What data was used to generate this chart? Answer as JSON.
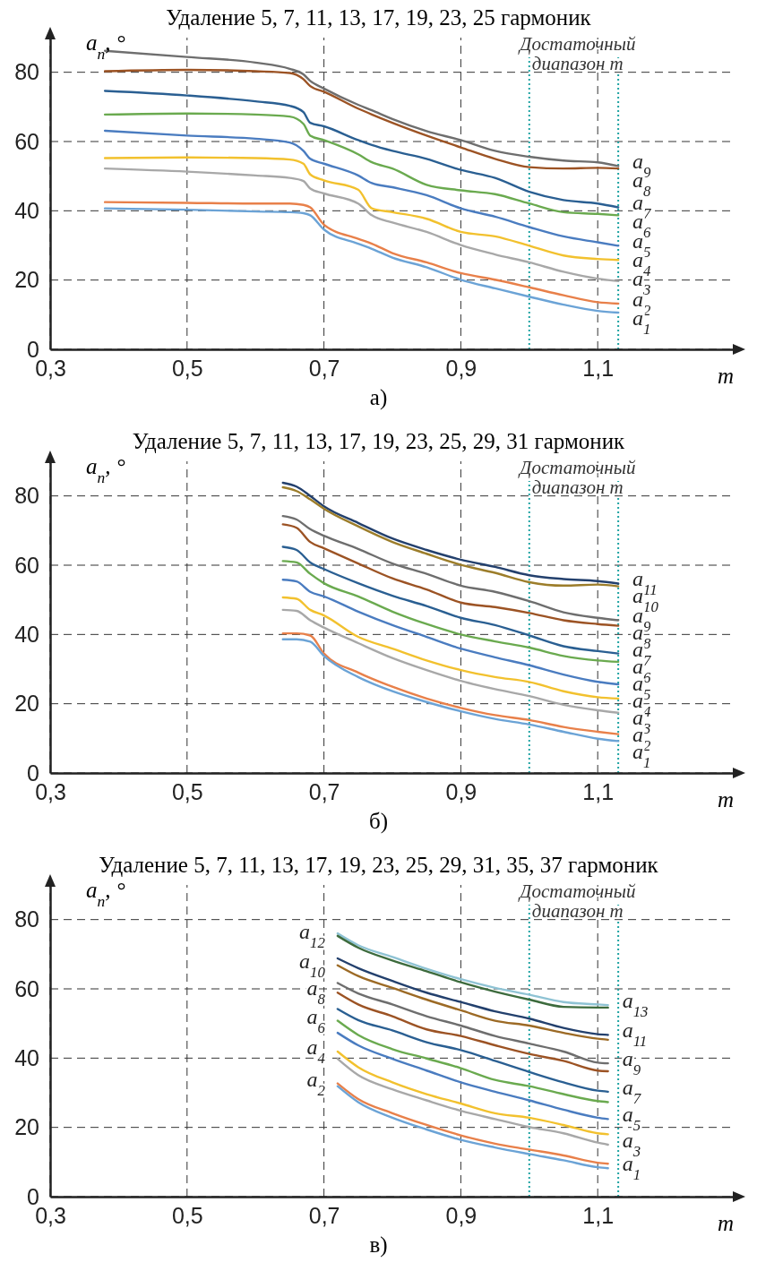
{
  "chart_data": [
    {
      "type": "line",
      "title": "Удаление 5, 7, 11, 13, 17, 19, 23, 25 гармоник",
      "xlabel": "m",
      "ylabel": "a$_{n}$, °",
      "annotations": [
        "а)"
      ],
      "x": [
        0.38,
        0.5,
        0.6,
        0.65,
        0.67,
        0.68,
        0.7,
        0.75,
        0.77,
        0.8,
        0.85,
        0.9,
        0.95,
        1.0,
        1.05,
        1.1,
        1.13
      ],
      "series": [
        {
          "name": "a$_{9}$",
          "color": "#6e6e6e",
          "values": [
            86.2,
            84.4,
            82.8,
            81,
            79.4,
            77.5,
            75.3,
            70.6,
            69,
            66.5,
            63,
            60.4,
            57.3,
            55.6,
            54.5,
            54,
            52.9
          ]
        },
        {
          "name": "a$_{8}$",
          "color": "#9c5324",
          "values": [
            80.3,
            80.7,
            80.3,
            79.8,
            78,
            76,
            74.4,
            69.5,
            67.8,
            65.4,
            61.7,
            58.3,
            55,
            52.6,
            52.2,
            52.4,
            52.2
          ]
        },
        {
          "name": "a$_{7}$",
          "color": "#2a5f92",
          "values": [
            74.6,
            73.3,
            71.6,
            70.3,
            68.5,
            65.4,
            64.4,
            60.4,
            59,
            57.3,
            55,
            51.8,
            49.5,
            45.5,
            43.1,
            42.1,
            41
          ]
        },
        {
          "name": "a$_{6}$",
          "color": "#6aaa4f",
          "values": [
            67.8,
            68.1,
            67.8,
            67.2,
            65.1,
            61.7,
            60.4,
            56.3,
            54,
            52.2,
            47.5,
            45.9,
            44.8,
            42.1,
            39.6,
            39.1,
            38.7
          ]
        },
        {
          "name": "a$_{5}$",
          "color": "#4a7cc0",
          "values": [
            63.1,
            61.7,
            60.8,
            59.7,
            57.3,
            55,
            53.6,
            50.2,
            48,
            46.8,
            44.5,
            40.7,
            38.3,
            35.3,
            32.6,
            30.9,
            29.9
          ]
        },
        {
          "name": "a$_{4}$",
          "color": "#f2c12e",
          "values": [
            55.2,
            55.4,
            55.2,
            54.8,
            53.6,
            50.5,
            48.8,
            46.1,
            40.7,
            39.6,
            37.7,
            33.9,
            32.6,
            29.9,
            27.1,
            26.1,
            25.8
          ]
        },
        {
          "name": "a$_{3}$",
          "color": "#a8a8a8",
          "values": [
            52.2,
            51.3,
            50.2,
            49.5,
            48.6,
            46.4,
            45,
            42.1,
            38.7,
            36.6,
            33.9,
            30.1,
            27.4,
            25.1,
            22.4,
            20.4,
            19.7
          ]
        },
        {
          "name": "a$_{2}$",
          "color": "#e8804a",
          "values": [
            42.5,
            42.3,
            42.1,
            42.1,
            41.7,
            41,
            36,
            31.9,
            30.5,
            27.8,
            25.1,
            22,
            20.1,
            17.9,
            15.6,
            13.6,
            13.2
          ]
        },
        {
          "name": "a$_{1}$",
          "color": "#6ba3d6",
          "values": [
            40.7,
            40.3,
            39.8,
            39.6,
            39.3,
            38.7,
            34.6,
            30.5,
            29,
            26.5,
            23.7,
            20.1,
            17.6,
            15.2,
            12.9,
            11.1,
            10.6
          ]
        }
      ],
      "xlim": [
        0.3,
        1.3
      ],
      "ylim": [
        0,
        90
      ],
      "xticks": [
        {
          "value": 0.3,
          "label": "0,3"
        },
        {
          "value": 0.5,
          "label": "0,5"
        },
        {
          "value": 0.7,
          "label": "0,7"
        },
        {
          "value": 0.9,
          "label": "0,9"
        },
        {
          "value": 1.1,
          "label": "1,1"
        }
      ],
      "yticks": [
        0,
        20,
        40,
        60,
        80
      ],
      "grid": true,
      "ref_lines": [
        {
          "axis": "x",
          "value": 1.0,
          "label": "Достаточный диапазон m",
          "color": "#1fa3a3",
          "line_style": "dotted"
        },
        {
          "axis": "x",
          "value": 1.13,
          "label": null,
          "color": "#1fa3a3",
          "line_style": "dotted"
        }
      ]
    },
    {
      "type": "line",
      "title": "Удаление 5, 7, 11, 13, 17, 19, 23, 25, 29, 31 гармоник",
      "xlabel": "m",
      "ylabel": "a$_{n}$, °",
      "annotations": [
        "б)"
      ],
      "x": [
        0.64,
        0.66,
        0.68,
        0.7,
        0.75,
        0.8,
        0.85,
        0.9,
        0.95,
        1.0,
        1.05,
        1.1,
        1.13
      ],
      "series": [
        {
          "name": "a$_{11}$",
          "color": "#23406d",
          "values": [
            83.8,
            82.7,
            80,
            77,
            72.2,
            67.7,
            64.4,
            61.6,
            59.5,
            57.1,
            56,
            55.4,
            54.7
          ]
        },
        {
          "name": "a$_{10}$",
          "color": "#9c7d2a",
          "values": [
            82.5,
            81.4,
            79,
            76.3,
            71.2,
            66.7,
            63.3,
            60.1,
            57.8,
            55.1,
            54.1,
            54.4,
            53.9
          ]
        },
        {
          "name": "a$_{9}$",
          "color": "#6e6e6e",
          "values": [
            74.2,
            73.2,
            70.4,
            68.5,
            64.7,
            60.5,
            57.5,
            54.1,
            52.3,
            49.6,
            46.4,
            44.8,
            44.1
          ]
        },
        {
          "name": "a$_{8}$",
          "color": "#9c5324",
          "values": [
            71.8,
            70.8,
            66.7,
            64.9,
            60.5,
            56.2,
            53,
            49.2,
            47.9,
            46.2,
            44.1,
            43,
            42.5
          ]
        },
        {
          "name": "a$_{7}$",
          "color": "#2a5f92",
          "values": [
            65.3,
            64.4,
            60.8,
            58.9,
            54.8,
            51.2,
            48.2,
            44.8,
            42.7,
            39.7,
            36.6,
            35.2,
            34.5
          ]
        },
        {
          "name": "a$_{6}$",
          "color": "#6aaa4f",
          "values": [
            61.2,
            60.8,
            57.5,
            54.8,
            51,
            46.6,
            43,
            40,
            38,
            36.2,
            33.8,
            32.5,
            32.1
          ]
        },
        {
          "name": "a$_{5}$",
          "color": "#4a7cc0",
          "values": [
            55.8,
            55.3,
            52.3,
            51,
            46.6,
            42.7,
            39.3,
            35.9,
            33.4,
            31.1,
            28.4,
            26.3,
            25.6
          ]
        },
        {
          "name": "a$_{4}$",
          "color": "#f2c12e",
          "values": [
            50.7,
            50.3,
            47.1,
            45.5,
            39.3,
            35.9,
            32.5,
            29.7,
            27.7,
            26.3,
            23.6,
            21.9,
            21.5
          ]
        },
        {
          "name": "a$_{3}$",
          "color": "#a8a8a8",
          "values": [
            47.1,
            46.8,
            44.1,
            42,
            37.5,
            33.2,
            29.7,
            26.6,
            24.2,
            22.2,
            19.7,
            18.1,
            17.4
          ]
        },
        {
          "name": "a$_{2}$",
          "color": "#e8804a",
          "values": [
            40.3,
            40.3,
            39.7,
            34.5,
            29,
            24.9,
            21.5,
            18.8,
            16.7,
            15.3,
            13.3,
            11.9,
            11.2
          ]
        },
        {
          "name": "a$_{1}$",
          "color": "#6ba3d6",
          "values": [
            38.6,
            38.6,
            37.9,
            33.8,
            27.7,
            23.6,
            20.5,
            17.8,
            15.6,
            14,
            11.9,
            9.9,
            9.2
          ]
        }
      ],
      "xlim": [
        0.3,
        1.3
      ],
      "ylim": [
        0,
        90
      ],
      "xticks": [
        {
          "value": 0.3,
          "label": "0,3"
        },
        {
          "value": 0.5,
          "label": "0,5"
        },
        {
          "value": 0.7,
          "label": "0,7"
        },
        {
          "value": 0.9,
          "label": "0,9"
        },
        {
          "value": 1.1,
          "label": "1,1"
        }
      ],
      "yticks": [
        0,
        20,
        40,
        60,
        80
      ],
      "grid": true,
      "ref_lines": [
        {
          "axis": "x",
          "value": 1.0,
          "label": "Достаточный диапазон m",
          "color": "#1fa3a3",
          "line_style": "dotted"
        },
        {
          "axis": "x",
          "value": 1.13,
          "label": null,
          "color": "#1fa3a3",
          "line_style": "dotted"
        }
      ]
    },
    {
      "type": "line",
      "title": "Удаление 5, 7, 11, 13, 17, 19, 23, 25, 29, 31, 35, 37 гармоник",
      "xlabel": "m",
      "ylabel": "a$_{n}$, °",
      "annotations": [
        "в)"
      ],
      "x": [
        0.72,
        0.75,
        0.8,
        0.85,
        0.9,
        0.95,
        1.0,
        1.05,
        1.1,
        1.115
      ],
      "series": [
        {
          "name": "a$_{13}$",
          "color": "#8fc3d4",
          "values": [
            76,
            72.6,
            69.2,
            65.8,
            62.8,
            60.3,
            58.3,
            56.2,
            55.5,
            55.3
          ]
        },
        {
          "name": "a$_{12}$",
          "color": "#3d6b3d",
          "values": [
            75.3,
            71.9,
            68.2,
            65.1,
            61.9,
            59.2,
            56.9,
            54.8,
            54.6,
            54.6
          ]
        },
        {
          "name": "a$_{11}$",
          "color": "#23406d",
          "values": [
            68.8,
            66,
            62.3,
            58.9,
            56.2,
            53.5,
            51.4,
            48.7,
            46.9,
            46.7
          ]
        },
        {
          "name": "a$_{10}$",
          "color": "#9c6a25",
          "values": [
            66.8,
            63.7,
            60.3,
            56.9,
            53.8,
            50.8,
            49.4,
            47.3,
            45.6,
            45.3
          ]
        },
        {
          "name": "a$_{9}$",
          "color": "#6e6e6e",
          "values": [
            61.7,
            58.7,
            55.5,
            52.1,
            49.4,
            46.4,
            44.2,
            41.9,
            38.7,
            38.5
          ]
        },
        {
          "name": "a$_{8}$",
          "color": "#9c5324",
          "values": [
            58.9,
            55.5,
            52.1,
            48.3,
            46.4,
            43.7,
            41.2,
            39.2,
            36.4,
            36.2
          ]
        },
        {
          "name": "a$_{7}$",
          "color": "#2a5f92",
          "values": [
            54.2,
            51,
            48,
            44.6,
            42.3,
            39.2,
            36,
            33,
            30.6,
            30.3
          ]
        },
        {
          "name": "a$_{6}$",
          "color": "#6aaa4f",
          "values": [
            50.8,
            46.7,
            42.6,
            39.9,
            37.1,
            33.7,
            31.9,
            29.6,
            27.6,
            27.3
          ]
        },
        {
          "name": "a$_{5}$",
          "color": "#4a7cc0",
          "values": [
            47.3,
            43.7,
            39.8,
            36.4,
            33,
            30.3,
            27.8,
            25.1,
            22.8,
            22.4
          ]
        },
        {
          "name": "a$_{4}$",
          "color": "#f2c12e",
          "values": [
            41.9,
            37.4,
            33,
            29.6,
            26.9,
            24.1,
            22.8,
            20.7,
            18.3,
            18
          ]
        },
        {
          "name": "a$_{3}$",
          "color": "#a8a8a8",
          "values": [
            39.8,
            35.1,
            31,
            27.8,
            24.8,
            22.4,
            20.1,
            18.3,
            15.6,
            15
          ]
        },
        {
          "name": "a$_{2}$",
          "color": "#e8804a",
          "values": [
            32.7,
            28.2,
            24.1,
            20.7,
            17.7,
            15.3,
            13.6,
            11.9,
            9.8,
            9.5
          ]
        },
        {
          "name": "a$_{1}$",
          "color": "#6ba3d6",
          "values": [
            31.9,
            27.3,
            22.8,
            19.4,
            16.4,
            14.2,
            12.3,
            10.5,
            8.5,
            8.2
          ]
        }
      ],
      "xlim": [
        0.3,
        1.3
      ],
      "ylim": [
        0,
        90
      ],
      "xticks": [
        {
          "value": 0.3,
          "label": "0,3"
        },
        {
          "value": 0.5,
          "label": "0,5"
        },
        {
          "value": 0.7,
          "label": "0,7"
        },
        {
          "value": 0.9,
          "label": "0,9"
        },
        {
          "value": 1.1,
          "label": "1,1"
        }
      ],
      "yticks": [
        0,
        20,
        40,
        60,
        80
      ],
      "grid": true,
      "ref_lines": [
        {
          "axis": "x",
          "value": 1.0,
          "label": "Достаточный диапазон m",
          "color": "#1fa3a3",
          "line_style": "dotted"
        },
        {
          "axis": "x",
          "value": 1.13,
          "label": null,
          "color": "#1fa3a3",
          "line_style": "dotted"
        }
      ]
    }
  ]
}
